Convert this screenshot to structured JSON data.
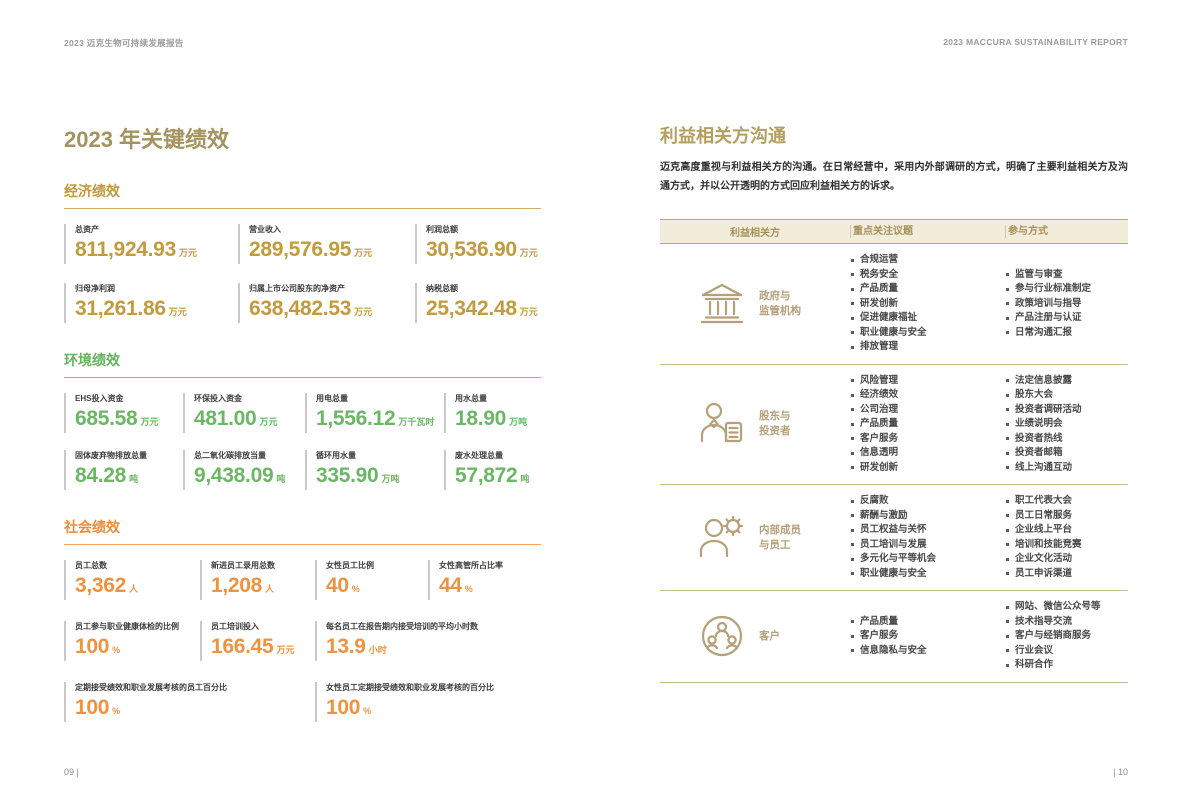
{
  "page_header": {
    "left": "2023 迈克生物可持续发展报告",
    "right": "2023 MACCURA SUSTAINABILITY REPORT"
  },
  "footer": {
    "left": "09 |",
    "right": "| 10"
  },
  "colors": {
    "title_gold": "#a3935e",
    "economic_accent": "#c39b3d",
    "environmental_accent": "#6cb765",
    "social_accent": "#f0923e",
    "table_tan": "#b5a079",
    "table_header_bg": "#f2edda"
  },
  "left_page": {
    "title": "2023 年关键绩效",
    "economic": {
      "title": "经济绩效",
      "stats": [
        {
          "label": "总资产",
          "value": "811,924.93",
          "unit": "万元"
        },
        {
          "label": "营业收入",
          "value": "289,576.95",
          "unit": "万元"
        },
        {
          "label": "利润总额",
          "value": "30,536.90",
          "unit": "万元"
        },
        {
          "label": "归母净利润",
          "value": "31,261.86",
          "unit": "万元"
        },
        {
          "label": "归属上市公司股东的净资产",
          "value": "638,482.53",
          "unit": "万元"
        },
        {
          "label": "纳税总额",
          "value": "25,342.48",
          "unit": "万元"
        }
      ]
    },
    "environmental": {
      "title": "环境绩效",
      "stats": [
        {
          "label": "EHS投入资金",
          "value": "685.58",
          "unit": "万元"
        },
        {
          "label": "环保投入资金",
          "value": "481.00",
          "unit": "万元"
        },
        {
          "label": "用电总量",
          "value": "1,556.12",
          "unit": "万千瓦时"
        },
        {
          "label": "用水总量",
          "value": "18.90",
          "unit": "万吨"
        },
        {
          "label": "固体废弃物排放总量",
          "value": "84.28",
          "unit": "吨"
        },
        {
          "label": "总二氧化碳排放当量",
          "value": "9,438.09",
          "unit": "吨"
        },
        {
          "label": "循环用水量",
          "value": "335.90",
          "unit": "万吨"
        },
        {
          "label": "废水处理总量",
          "value": "57,872",
          "unit": "吨"
        }
      ]
    },
    "social": {
      "title": "社会绩效",
      "row1": [
        {
          "label": "员工总数",
          "value": "3,362",
          "unit": "人"
        },
        {
          "label": "新进员工录用总数",
          "value": "1,208",
          "unit": "人"
        },
        {
          "label": "女性员工比例",
          "value": "40",
          "unit": "%"
        },
        {
          "label": "女性高管所占比率",
          "value": "44",
          "unit": "%"
        }
      ],
      "row2": [
        {
          "label": "员工参与职业健康体检的比例",
          "value": "100",
          "unit": "%"
        },
        {
          "label": "员工培训投入",
          "value": "166.45",
          "unit": "万元"
        },
        {
          "label": "每名员工在报告期内接受培训的平均小时数",
          "value": "13.9",
          "unit": "小时"
        }
      ],
      "row3": [
        {
          "label": "定期接受绩效和职业发展考核的员工百分比",
          "value": "100",
          "unit": "%"
        },
        {
          "label": "女性员工定期接受绩效和职业发展考核的百分比",
          "value": "100",
          "unit": "%"
        }
      ]
    }
  },
  "right_page": {
    "title": "利益相关方沟通",
    "intro": "迈克高度重视与利益相关方的沟通。在日常经营中，采用内外部调研的方式，明确了主要利益相关方及沟通方式，并以公开透明的方式回应利益相关方的诉求。",
    "table": {
      "headers": [
        "利益相关方",
        "重点关注议题",
        "参与方式"
      ],
      "rows": [
        {
          "icon": "government-building-icon",
          "name_lines": [
            "政府与",
            "监管机构"
          ],
          "topics": [
            "合规运营",
            "税务安全",
            "产品质量",
            "研发创新",
            "促进健康福祉",
            "职业健康与安全",
            "排放管理"
          ],
          "methods": [
            "监管与审查",
            "参与行业标准制定",
            "政策培训与指导",
            "产品注册与认证",
            "日常沟通汇报"
          ]
        },
        {
          "icon": "investor-icon",
          "name_lines": [
            "股东与",
            "投资者"
          ],
          "topics": [
            "风险管理",
            "经济绩效",
            "公司治理",
            "产品质量",
            "客户服务",
            "信息透明",
            "研发创新"
          ],
          "methods": [
            "法定信息披露",
            "股东大会",
            "投资者调研活动",
            "业绩说明会",
            "投资者热线",
            "投资者邮箱",
            "线上沟通互动"
          ]
        },
        {
          "icon": "employee-gear-icon",
          "name_lines": [
            "内部成员",
            "与员工"
          ],
          "topics": [
            "反腐败",
            "薪酬与激励",
            "员工权益与关怀",
            "员工培训与发展",
            "多元化与平等机会",
            "职业健康与安全"
          ],
          "methods": [
            "职工代表大会",
            "员工日常服务",
            "企业线上平台",
            "培训和技能竞赛",
            "企业文化活动",
            "员工申诉渠道"
          ]
        },
        {
          "icon": "customers-icon",
          "name_lines": [
            "客户"
          ],
          "topics": [
            "产品质量",
            "客户服务",
            "信息隐私与安全"
          ],
          "methods": [
            "网站、微信公众号等",
            "技术指导交流",
            "客户与经销商服务",
            "行业会议",
            "科研合作"
          ]
        }
      ]
    }
  }
}
